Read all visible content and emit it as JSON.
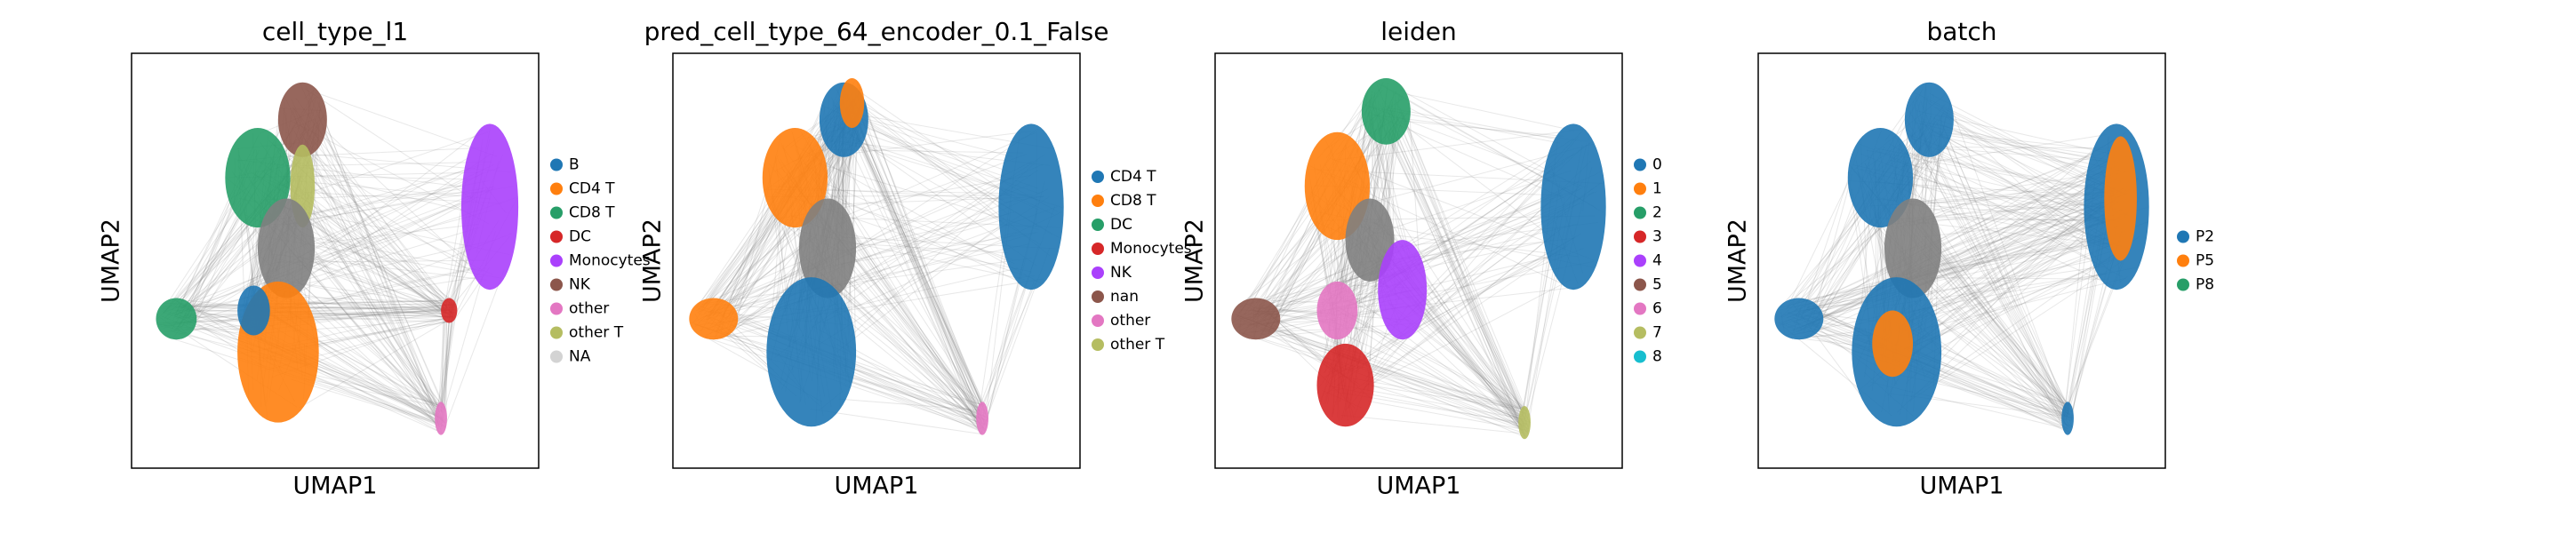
{
  "chart_data": [
    {
      "type": "scatter",
      "title": "cell_type_l1",
      "xlabel": "UMAP1",
      "ylabel": "UMAP2",
      "series": [
        {
          "name": "B",
          "color": "#1f77b4"
        },
        {
          "name": "CD4 T",
          "color": "#ff7f0e"
        },
        {
          "name": "CD8 T",
          "color": "#279e68"
        },
        {
          "name": "DC",
          "color": "#d62728"
        },
        {
          "name": "Monocytes",
          "color": "#aa40fc"
        },
        {
          "name": "NK",
          "color": "#8c564b"
        },
        {
          "name": "other",
          "color": "#e377c2"
        },
        {
          "name": "other T",
          "color": "#b5bd61"
        },
        {
          "name": "NA",
          "color": "#d3d3d3"
        }
      ]
    },
    {
      "type": "scatter",
      "title": "pred_cell_type_64_encoder_0.1_False",
      "xlabel": "UMAP1",
      "ylabel": "UMAP2",
      "series": [
        {
          "name": "CD4 T",
          "color": "#1f77b4"
        },
        {
          "name": "CD8 T",
          "color": "#ff7f0e"
        },
        {
          "name": "DC",
          "color": "#279e68"
        },
        {
          "name": "Monocytes",
          "color": "#d62728"
        },
        {
          "name": "NK",
          "color": "#aa40fc"
        },
        {
          "name": "nan",
          "color": "#8c564b"
        },
        {
          "name": "other",
          "color": "#e377c2"
        },
        {
          "name": "other T",
          "color": "#b5bd61"
        }
      ]
    },
    {
      "type": "scatter",
      "title": "leiden",
      "xlabel": "UMAP1",
      "ylabel": "UMAP2",
      "series": [
        {
          "name": "0",
          "color": "#1f77b4"
        },
        {
          "name": "1",
          "color": "#ff7f0e"
        },
        {
          "name": "2",
          "color": "#279e68"
        },
        {
          "name": "3",
          "color": "#d62728"
        },
        {
          "name": "4",
          "color": "#aa40fc"
        },
        {
          "name": "5",
          "color": "#8c564b"
        },
        {
          "name": "6",
          "color": "#e377c2"
        },
        {
          "name": "7",
          "color": "#b5bd61"
        },
        {
          "name": "8",
          "color": "#17becf"
        }
      ]
    },
    {
      "type": "scatter",
      "title": "batch",
      "xlabel": "UMAP1",
      "ylabel": "UMAP2",
      "series": [
        {
          "name": "P2",
          "color": "#1f77b4"
        },
        {
          "name": "P5",
          "color": "#ff7f0e"
        },
        {
          "name": "P8",
          "color": "#279e68"
        }
      ]
    }
  ]
}
